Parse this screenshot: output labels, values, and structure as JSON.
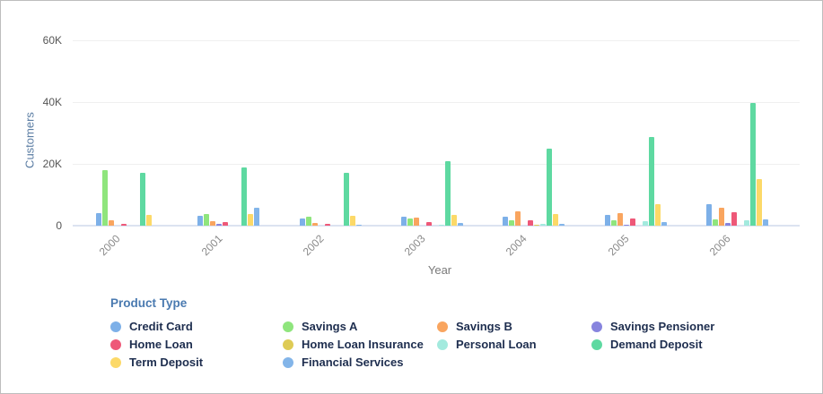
{
  "chart_data": {
    "type": "bar",
    "title": "",
    "xlabel": "Year",
    "ylabel": "Customers",
    "ylim": [
      0,
      60000
    ],
    "yticks": [
      {
        "label": "60K",
        "value": 60000
      },
      {
        "label": "40K",
        "value": 40000
      },
      {
        "label": "20K",
        "value": 20000
      },
      {
        "label": "0",
        "value": 0
      }
    ],
    "grid": "horizontal",
    "categories": [
      "2000",
      "2001",
      "2002",
      "2003",
      "2004",
      "2005",
      "2006"
    ],
    "legend_title": "Product Type",
    "legend_position": "bottom-left",
    "series": [
      {
        "name": "Credit Card",
        "color": "#7db0e8",
        "values": [
          4000,
          3200,
          2400,
          2900,
          2900,
          3600,
          6900
        ]
      },
      {
        "name": "Savings A",
        "color": "#8fe57d",
        "values": [
          18000,
          3800,
          2900,
          2300,
          1600,
          1800,
          2100
        ]
      },
      {
        "name": "Savings B",
        "color": "#f9a55f",
        "values": [
          1800,
          1400,
          900,
          2500,
          4700,
          4200,
          5900
        ]
      },
      {
        "name": "Savings Pensioner",
        "color": "#8784de",
        "values": [
          0,
          600,
          0,
          0,
          0,
          400,
          1000
        ]
      },
      {
        "name": "Home Loan",
        "color": "#ee5878",
        "values": [
          500,
          1100,
          600,
          1200,
          1800,
          2300,
          4300
        ]
      },
      {
        "name": "Home Loan Insurance",
        "color": "#decb55",
        "values": [
          0,
          0,
          0,
          0,
          400,
          0,
          0
        ]
      },
      {
        "name": "Personal Loan",
        "color": "#a3eade",
        "values": [
          0,
          0,
          0,
          400,
          700,
          1500,
          1800
        ]
      },
      {
        "name": "Demand Deposit",
        "color": "#5ed9a1",
        "values": [
          17000,
          18800,
          17200,
          21000,
          24900,
          28600,
          39600
        ]
      },
      {
        "name": "Term Deposit",
        "color": "#fcd968",
        "values": [
          3400,
          3900,
          3100,
          3500,
          3900,
          7000,
          15200
        ]
      },
      {
        "name": "Financial Services",
        "color": "#83b5e9",
        "values": [
          0,
          5800,
          400,
          900,
          700,
          1100,
          1900
        ]
      }
    ]
  }
}
